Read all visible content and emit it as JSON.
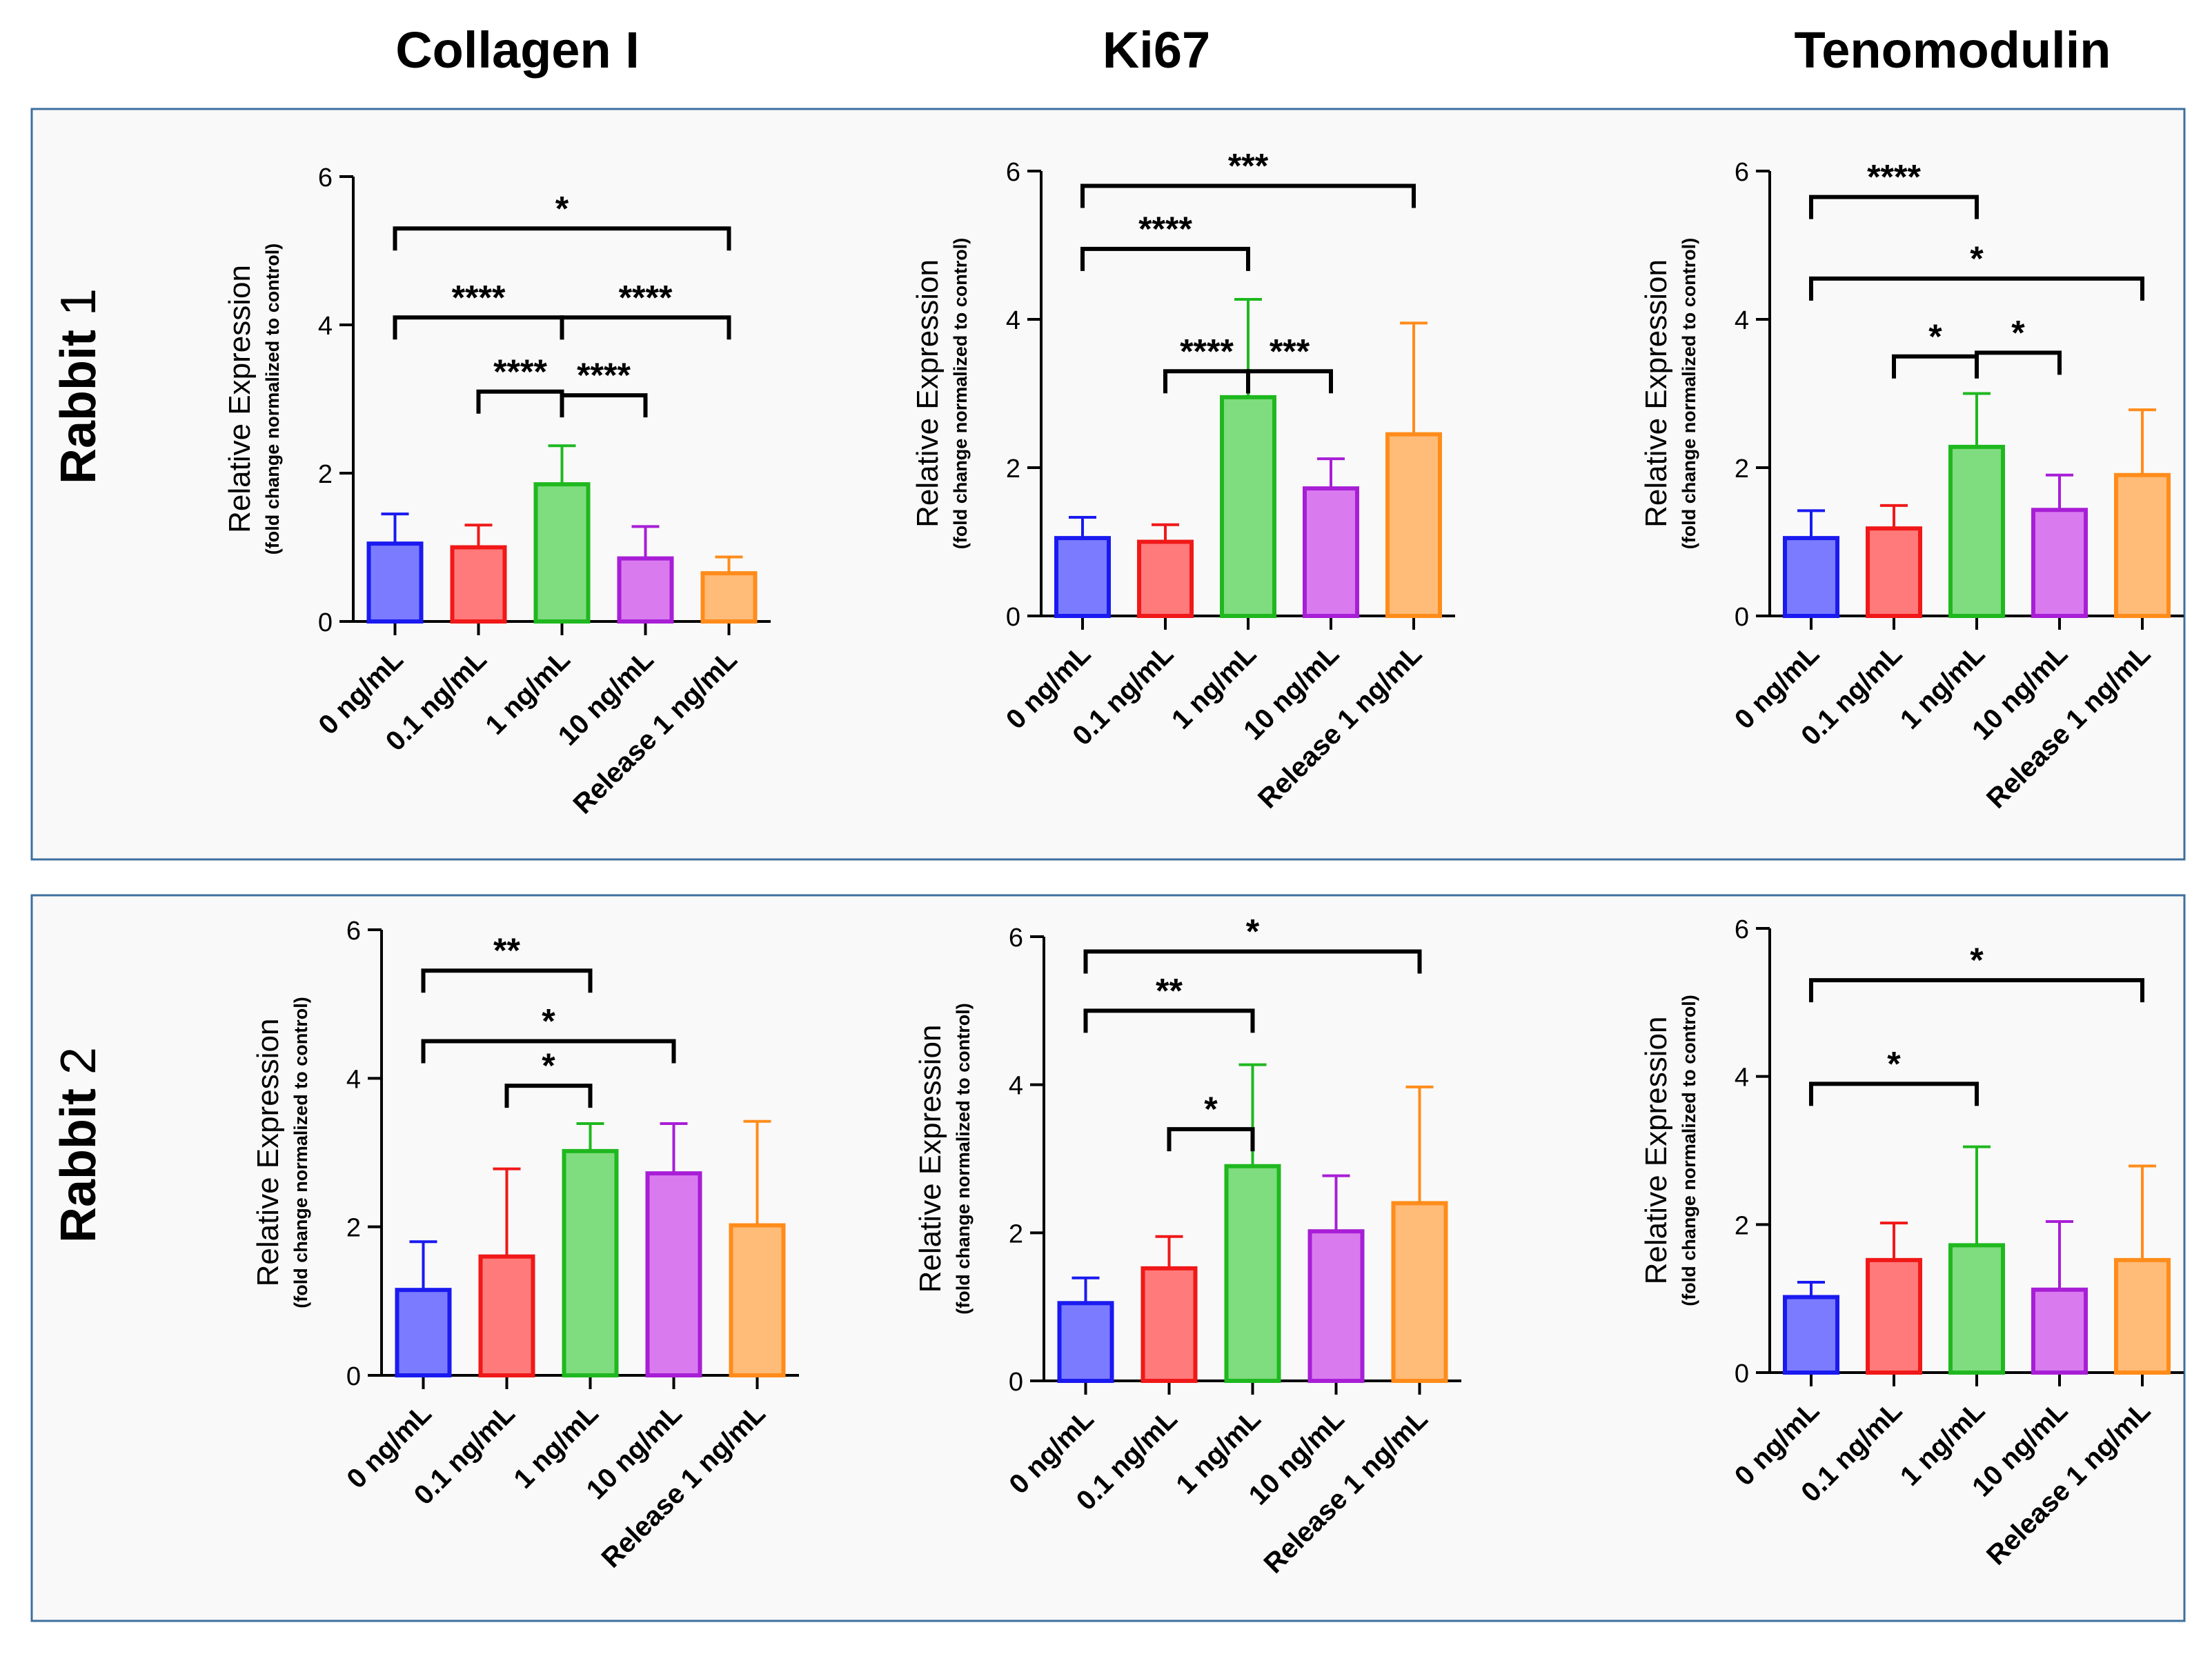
{
  "column_titles": [
    "Collagen I",
    "Ki67",
    "Tenomodulin"
  ],
  "row_titles": [
    {
      "label": "Rabbit",
      "number": "1"
    },
    {
      "label": "Rabbit",
      "number": "2"
    }
  ],
  "colors": {
    "panel_bg": "#f9f9f9",
    "panel_border": "#3d6f9e",
    "bar_fills": [
      "#7b7bff",
      "#ff7a7a",
      "#7fdc7f",
      "#d97bef",
      "#ffbb78"
    ],
    "bar_strokes": [
      "#1a1af0",
      "#f01818",
      "#1fb81f",
      "#a81ed6",
      "#ff8c1a"
    ]
  },
  "chart_data": [
    {
      "type": "bar",
      "title": "Collagen I",
      "row": "Rabbit 1",
      "ylabel": "Relative Expression",
      "ylabel_sub": "(fold change normalized to control)",
      "ylim": [
        0,
        6
      ],
      "yticks": [
        "0",
        "2",
        "4",
        "6"
      ],
      "categories": [
        "0 ng/mL",
        "0.1 ng/mL",
        "1 ng/mL",
        "10 ng/mL",
        "Release 1 ng/mL"
      ],
      "values": [
        1.05,
        1.0,
        1.85,
        0.85,
        0.65
      ],
      "errors": [
        0.4,
        0.3,
        0.52,
        0.43,
        0.22
      ],
      "significance": [
        {
          "from": 0,
          "to": 4,
          "y": 5.3,
          "label": "*"
        },
        {
          "from": 0,
          "to": 2,
          "y": 4.1,
          "label": "****"
        },
        {
          "from": 2,
          "to": 4,
          "y": 4.1,
          "label": "****"
        },
        {
          "from": 1,
          "to": 2,
          "y": 3.1,
          "label": "****"
        },
        {
          "from": 2,
          "to": 3,
          "y": 3.05,
          "label": "****"
        }
      ]
    },
    {
      "type": "bar",
      "title": "Ki67",
      "row": "Rabbit 1",
      "ylabel": "Relative Expression",
      "ylabel_sub": "(fold change normalized to control)",
      "ylim": [
        0,
        6
      ],
      "yticks": [
        "0",
        "2",
        "4",
        "6"
      ],
      "categories": [
        "0 ng/mL",
        "0.1 ng/mL",
        "1 ng/mL",
        "10 ng/mL",
        "Release 1 ng/mL"
      ],
      "values": [
        1.05,
        1.0,
        2.95,
        1.72,
        2.45
      ],
      "errors": [
        0.28,
        0.23,
        1.32,
        0.4,
        1.5
      ],
      "significance": [
        {
          "from": 0,
          "to": 4,
          "y": 5.8,
          "label": "***"
        },
        {
          "from": 0,
          "to": 2,
          "y": 4.95,
          "label": "****"
        },
        {
          "from": 1,
          "to": 2,
          "y": 3.3,
          "label": "****"
        },
        {
          "from": 2,
          "to": 3,
          "y": 3.3,
          "label": "***"
        }
      ]
    },
    {
      "type": "bar",
      "title": "Tenomodulin",
      "row": "Rabbit 1",
      "ylabel": "Relative Expression",
      "ylabel_sub": "(fold change normalized to control)",
      "ylim": [
        0,
        6
      ],
      "yticks": [
        "0",
        "2",
        "4",
        "6"
      ],
      "categories": [
        "0 ng/mL",
        "0.1 ng/mL",
        "1 ng/mL",
        "10 ng/mL",
        "Release 1 ng/mL"
      ],
      "values": [
        1.05,
        1.18,
        2.28,
        1.43,
        1.9
      ],
      "errors": [
        0.37,
        0.31,
        0.72,
        0.47,
        0.88
      ],
      "significance": [
        {
          "from": 0,
          "to": 2,
          "y": 5.65,
          "label": "****"
        },
        {
          "from": 0,
          "to": 4,
          "y": 4.55,
          "label": "*"
        },
        {
          "from": 1,
          "to": 2,
          "y": 3.5,
          "label": "*"
        },
        {
          "from": 2,
          "to": 3,
          "y": 3.55,
          "label": "*"
        }
      ]
    },
    {
      "type": "bar",
      "title": "Collagen I",
      "row": "Rabbit 2",
      "ylabel": "Relative Expression",
      "ylabel_sub": "(fold change normalized to control)",
      "ylim": [
        0,
        6
      ],
      "yticks": [
        "0",
        "2",
        "4",
        "6"
      ],
      "categories": [
        "0 ng/mL",
        "0.1 ng/mL",
        "1 ng/mL",
        "10 ng/mL",
        "Release 1 ng/mL"
      ],
      "values": [
        1.15,
        1.6,
        3.02,
        2.72,
        2.02
      ],
      "errors": [
        0.65,
        1.18,
        0.37,
        0.67,
        1.4
      ],
      "significance": [
        {
          "from": 0,
          "to": 2,
          "y": 5.45,
          "label": "**"
        },
        {
          "from": 0,
          "to": 3,
          "y": 4.5,
          "label": "*"
        },
        {
          "from": 1,
          "to": 2,
          "y": 3.9,
          "label": "*"
        }
      ]
    },
    {
      "type": "bar",
      "title": "Ki67",
      "row": "Rabbit 2",
      "ylabel": "Relative Expression",
      "ylabel_sub": "(fold change normalized to control)",
      "ylim": [
        0,
        6
      ],
      "yticks": [
        "0",
        "2",
        "4",
        "6"
      ],
      "categories": [
        "0 ng/mL",
        "0.1 ng/mL",
        "1 ng/mL",
        "10 ng/mL",
        "Release 1 ng/mL"
      ],
      "values": [
        1.05,
        1.52,
        2.9,
        2.02,
        2.4
      ],
      "errors": [
        0.34,
        0.43,
        1.37,
        0.75,
        1.57
      ],
      "significance": [
        {
          "from": 0,
          "to": 4,
          "y": 5.8,
          "label": "*"
        },
        {
          "from": 0,
          "to": 2,
          "y": 5.0,
          "label": "**"
        },
        {
          "from": 1,
          "to": 2,
          "y": 3.4,
          "label": "*"
        }
      ]
    },
    {
      "type": "bar",
      "title": "Tenomodulin",
      "row": "Rabbit 2",
      "ylabel": "Relative Expression",
      "ylabel_sub": "(fold change normalized to control)",
      "ylim": [
        0,
        6
      ],
      "yticks": [
        "0",
        "2",
        "4",
        "6"
      ],
      "categories": [
        "0 ng/mL",
        "0.1 ng/mL",
        "1 ng/mL",
        "10 ng/mL",
        "Release 1 ng/mL"
      ],
      "values": [
        1.02,
        1.52,
        1.72,
        1.12,
        1.52
      ],
      "errors": [
        0.2,
        0.5,
        1.33,
        0.92,
        1.27
      ],
      "significance": [
        {
          "from": 0,
          "to": 4,
          "y": 5.3,
          "label": "*"
        },
        {
          "from": 0,
          "to": 2,
          "y": 3.9,
          "label": "*"
        }
      ]
    }
  ]
}
